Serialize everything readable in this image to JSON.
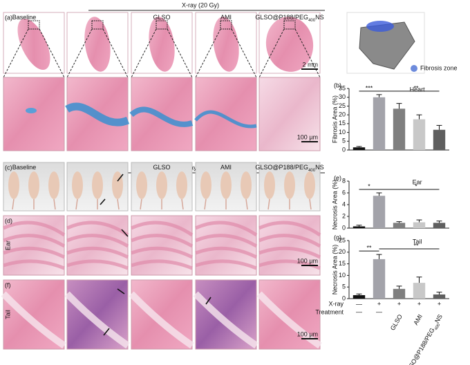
{
  "figure": {
    "xray_label": "X-ray (20 Gy)",
    "panel_letters": [
      "(a)",
      "(c)",
      "(d)",
      "(f)"
    ],
    "groups": [
      [
        "Baseline"
      ],
      [],
      [
        "GLSO"
      ],
      [
        "AMI"
      ],
      [
        "GLSO@P188/PEG",
        "400",
        "NS"
      ]
    ],
    "scale_bars": [
      "2 mm",
      "100 µm",
      "100 µm",
      "100 µm"
    ],
    "row_labels": [
      "Ear",
      "Tail"
    ],
    "model_legend": "Fibrosis zone",
    "treatment_table": {
      "row_names": [
        "X-ray",
        "Treatment"
      ],
      "xray": [
        "—",
        "+",
        "+",
        "+",
        "+"
      ],
      "treatment": [
        [
          "—"
        ],
        [
          "—"
        ],
        [
          "GLSO"
        ],
        [
          "AMI"
        ],
        [
          "GLSO@P188/PEG",
          "400",
          "NS"
        ]
      ]
    }
  },
  "chart_data": [
    {
      "type": "bar",
      "panel": "(b)",
      "title": "Heart",
      "ylabel": "Fibrosis Area (%)",
      "categories": [
        null,
        null,
        null,
        null,
        null
      ],
      "values": [
        1.5,
        30,
        23.5,
        17.5,
        11.5
      ],
      "errors": [
        0.5,
        1.5,
        3,
        2.5,
        2.5
      ],
      "colors": [
        "#111111",
        "#a3a3aa",
        "#7f7f7f",
        "#c8c8c8",
        "#5f5f5f"
      ],
      "ylim": [
        0,
        35
      ],
      "yticks": [
        0,
        5,
        10,
        15,
        20,
        25,
        30,
        35
      ],
      "annotations": [
        "***",
        "**"
      ]
    },
    {
      "type": "bar",
      "panel": "(e)",
      "title": "Ear",
      "ylabel": "Necrosis Area (%)",
      "categories": [
        null,
        null,
        null,
        null,
        null
      ],
      "values": [
        0.3,
        5.5,
        0.9,
        1.0,
        0.9
      ],
      "errors": [
        0.2,
        0.5,
        0.2,
        0.4,
        0.3
      ],
      "colors": [
        "#111111",
        "#a3a3aa",
        "#7f7f7f",
        "#c8c8c8",
        "#5f5f5f"
      ],
      "ylim": [
        0,
        8
      ],
      "yticks": [
        0,
        2,
        4,
        6,
        8
      ],
      "annotations": [
        "*",
        "*"
      ]
    },
    {
      "type": "bar",
      "panel": "(g)",
      "title": "Tail",
      "ylabel": "Necrosis Area (%)",
      "categories": [
        null,
        null,
        null,
        null,
        null
      ],
      "values": [
        1.5,
        17,
        4.2,
        6.8,
        1.8
      ],
      "errors": [
        0.5,
        2,
        1.2,
        2.5,
        1.0
      ],
      "colors": [
        "#111111",
        "#a3a3aa",
        "#7f7f7f",
        "#c8c8c8",
        "#5f5f5f"
      ],
      "ylim": [
        0,
        25
      ],
      "yticks": [
        0,
        5,
        10,
        15,
        20,
        25
      ],
      "annotations": [
        "**",
        "**"
      ]
    }
  ]
}
